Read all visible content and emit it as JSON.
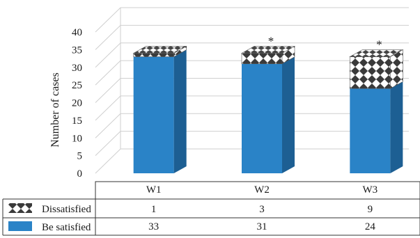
{
  "chart_data": {
    "type": "bar",
    "stacked": true,
    "style": "3d",
    "categories": [
      "W1",
      "W2",
      "W3"
    ],
    "series": [
      {
        "name": "Be satisfied",
        "values": [
          33,
          31,
          24
        ],
        "color": "#2a83c7"
      },
      {
        "name": "Dissatisfied",
        "values": [
          1,
          3,
          9
        ],
        "pattern": "diamond-checker",
        "color": "#333333"
      }
    ],
    "annotations": [
      "",
      "*",
      "*"
    ],
    "ylabel": "Number of cases",
    "ylim": [
      0,
      40
    ],
    "yticks": [
      0,
      5,
      10,
      15,
      20,
      25,
      30,
      35,
      40
    ],
    "grid": true,
    "legend": "data-table-below"
  }
}
